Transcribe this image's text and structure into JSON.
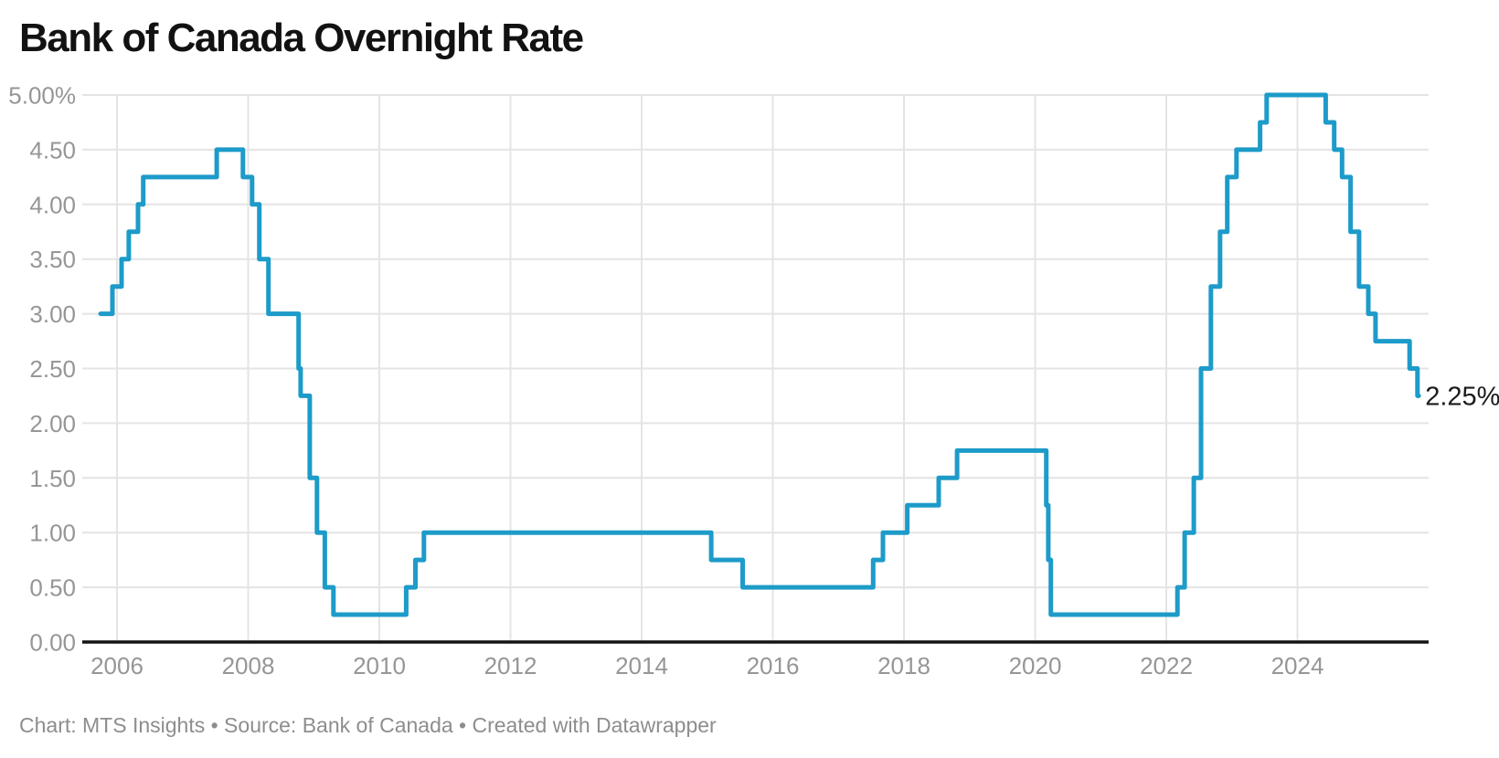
{
  "title": "Bank of Canada Overnight Rate",
  "footer": "Chart: MTS Insights • Source: Bank of Canada • Created with Datawrapper",
  "colors": {
    "line": "#1d9bc9",
    "grid": "#e4e4e4",
    "axis": "#141414",
    "tick_label": "#969696",
    "title": "#121212",
    "footer": "#8d8d8d",
    "annotation": "#1b1b1b",
    "background": "#ffffff"
  },
  "chart_data": {
    "type": "line",
    "step": true,
    "title": "Bank of Canada Overnight Rate",
    "xlabel": "",
    "ylabel": "",
    "xlim": [
      2005.75,
      2025.85
    ],
    "ylim": [
      0,
      5
    ],
    "grid": true,
    "legend": "none",
    "x_ticks": [
      2006,
      2008,
      2010,
      2012,
      2014,
      2016,
      2018,
      2020,
      2022,
      2024
    ],
    "y_ticks": [
      {
        "v": 5.0,
        "label": "5.00%"
      },
      {
        "v": 4.5,
        "label": "4.50"
      },
      {
        "v": 4.0,
        "label": "4.00"
      },
      {
        "v": 3.5,
        "label": "3.50"
      },
      {
        "v": 3.0,
        "label": "3.00"
      },
      {
        "v": 2.5,
        "label": "2.50"
      },
      {
        "v": 2.0,
        "label": "2.00"
      },
      {
        "v": 1.5,
        "label": "1.50"
      },
      {
        "v": 1.0,
        "label": "1.00"
      },
      {
        "v": 0.5,
        "label": "0.50"
      },
      {
        "v": 0.0,
        "label": "0.00"
      }
    ],
    "series": [
      {
        "name": "Overnight rate",
        "points": [
          [
            2005.75,
            3.0
          ],
          [
            2005.93,
            3.25
          ],
          [
            2006.07,
            3.5
          ],
          [
            2006.18,
            3.75
          ],
          [
            2006.32,
            4.0
          ],
          [
            2006.4,
            4.25
          ],
          [
            2007.52,
            4.5
          ],
          [
            2007.92,
            4.25
          ],
          [
            2008.06,
            4.0
          ],
          [
            2008.17,
            3.5
          ],
          [
            2008.31,
            3.0
          ],
          [
            2008.77,
            2.5
          ],
          [
            2008.8,
            2.25
          ],
          [
            2008.94,
            1.5
          ],
          [
            2009.05,
            1.0
          ],
          [
            2009.17,
            0.5
          ],
          [
            2009.3,
            0.25
          ],
          [
            2010.41,
            0.5
          ],
          [
            2010.55,
            0.75
          ],
          [
            2010.68,
            1.0
          ],
          [
            2015.06,
            0.75
          ],
          [
            2015.54,
            0.5
          ],
          [
            2017.53,
            0.75
          ],
          [
            2017.68,
            1.0
          ],
          [
            2018.05,
            1.25
          ],
          [
            2018.53,
            1.5
          ],
          [
            2018.81,
            1.75
          ],
          [
            2020.17,
            1.25
          ],
          [
            2020.2,
            0.75
          ],
          [
            2020.24,
            0.25
          ],
          [
            2022.17,
            0.5
          ],
          [
            2022.28,
            1.0
          ],
          [
            2022.42,
            1.5
          ],
          [
            2022.53,
            2.5
          ],
          [
            2022.68,
            3.25
          ],
          [
            2022.82,
            3.75
          ],
          [
            2022.93,
            4.25
          ],
          [
            2023.07,
            4.5
          ],
          [
            2023.43,
            4.75
          ],
          [
            2023.53,
            5.0
          ],
          [
            2024.43,
            4.75
          ],
          [
            2024.56,
            4.5
          ],
          [
            2024.68,
            4.25
          ],
          [
            2024.81,
            3.75
          ],
          [
            2024.94,
            3.25
          ],
          [
            2025.08,
            3.0
          ],
          [
            2025.19,
            2.75
          ],
          [
            2025.71,
            2.5
          ],
          [
            2025.83,
            2.25
          ]
        ]
      }
    ],
    "annotation": {
      "text": "2.25%",
      "x": 2025.85,
      "y": 2.25
    }
  }
}
